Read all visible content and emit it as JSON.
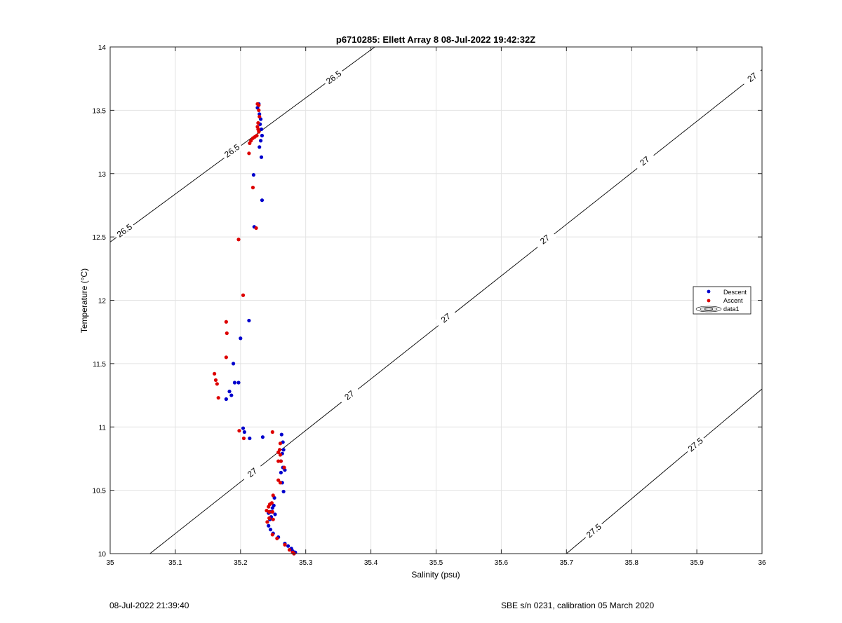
{
  "chart_data": {
    "type": "scatter",
    "title": "p6710285: Ellett Array 8 08-Jul-2022 19:42:32Z",
    "xlabel": "Salinity (psu)",
    "ylabel": "Temperature (°C)",
    "xlim": [
      35,
      36
    ],
    "ylim": [
      10,
      14
    ],
    "xticks": [
      35,
      35.1,
      35.2,
      35.3,
      35.4,
      35.5,
      35.6,
      35.7,
      35.8,
      35.9,
      36
    ],
    "xtick_labels": [
      "35",
      "35.1",
      "35.2",
      "35.3",
      "35.4",
      "35.5",
      "35.6",
      "35.7",
      "35.8",
      "35.9",
      "36"
    ],
    "yticks": [
      10,
      10.5,
      11,
      11.5,
      12,
      12.5,
      13,
      13.5,
      14
    ],
    "ytick_labels": [
      "10",
      "10.5",
      "11",
      "11.5",
      "12",
      "12.5",
      "13",
      "13.5",
      "14"
    ],
    "grid": true,
    "legend_position": "right",
    "legend": [
      "Descent",
      "Ascent",
      "data1"
    ],
    "series": [
      {
        "name": "Descent",
        "color": "#0000cc",
        "points": [
          [
            35.228,
            13.55
          ],
          [
            35.226,
            13.52
          ],
          [
            35.229,
            13.47
          ],
          [
            35.231,
            13.43
          ],
          [
            35.23,
            13.39
          ],
          [
            35.232,
            13.35
          ],
          [
            35.233,
            13.3
          ],
          [
            35.231,
            13.26
          ],
          [
            35.229,
            13.21
          ],
          [
            35.232,
            13.13
          ],
          [
            35.22,
            12.99
          ],
          [
            35.233,
            12.79
          ],
          [
            35.221,
            12.58
          ],
          [
            35.213,
            11.84
          ],
          [
            35.2,
            11.7
          ],
          [
            35.189,
            11.5
          ],
          [
            35.191,
            11.35
          ],
          [
            35.197,
            11.35
          ],
          [
            35.183,
            11.28
          ],
          [
            35.186,
            11.25
          ],
          [
            35.178,
            11.22
          ],
          [
            35.204,
            10.99
          ],
          [
            35.206,
            10.96
          ],
          [
            35.214,
            10.91
          ],
          [
            35.234,
            10.92
          ],
          [
            35.263,
            10.94
          ],
          [
            35.265,
            10.88
          ],
          [
            35.266,
            10.82
          ],
          [
            35.264,
            10.79
          ],
          [
            35.262,
            10.73
          ],
          [
            35.265,
            10.68
          ],
          [
            35.268,
            10.66
          ],
          [
            35.262,
            10.64
          ],
          [
            35.264,
            10.56
          ],
          [
            35.266,
            10.49
          ],
          [
            35.252,
            10.44
          ],
          [
            35.251,
            10.38
          ],
          [
            35.249,
            10.36
          ],
          [
            35.246,
            10.33
          ],
          [
            35.243,
            10.32
          ],
          [
            35.253,
            10.31
          ],
          [
            35.247,
            10.29
          ],
          [
            35.245,
            10.27
          ],
          [
            35.243,
            10.22
          ],
          [
            35.246,
            10.19
          ],
          [
            35.25,
            10.16
          ],
          [
            35.258,
            10.13
          ],
          [
            35.268,
            10.08
          ],
          [
            35.273,
            10.06
          ],
          [
            35.278,
            10.04
          ],
          [
            35.28,
            10.02
          ],
          [
            35.284,
            10.01
          ],
          [
            35.282,
            10.0
          ]
        ]
      },
      {
        "name": "Ascent",
        "color": "#dd0000",
        "points": [
          [
            35.226,
            13.55
          ],
          [
            35.228,
            13.54
          ],
          [
            35.228,
            13.5
          ],
          [
            35.229,
            13.45
          ],
          [
            35.227,
            13.4
          ],
          [
            35.226,
            13.37
          ],
          [
            35.227,
            13.35
          ],
          [
            35.228,
            13.33
          ],
          [
            35.225,
            13.3
          ],
          [
            35.222,
            13.29
          ],
          [
            35.219,
            13.28
          ],
          [
            35.216,
            13.26
          ],
          [
            35.214,
            13.24
          ],
          [
            35.213,
            13.16
          ],
          [
            35.219,
            12.89
          ],
          [
            35.224,
            12.57
          ],
          [
            35.197,
            12.48
          ],
          [
            35.204,
            12.04
          ],
          [
            35.178,
            11.83
          ],
          [
            35.179,
            11.74
          ],
          [
            35.178,
            11.55
          ],
          [
            35.16,
            11.42
          ],
          [
            35.162,
            11.37
          ],
          [
            35.164,
            11.34
          ],
          [
            35.166,
            11.23
          ],
          [
            35.198,
            10.97
          ],
          [
            35.205,
            10.91
          ],
          [
            35.249,
            10.96
          ],
          [
            35.261,
            10.87
          ],
          [
            35.26,
            10.82
          ],
          [
            35.258,
            10.8
          ],
          [
            35.261,
            10.78
          ],
          [
            35.262,
            10.73
          ],
          [
            35.258,
            10.73
          ],
          [
            35.267,
            10.68
          ],
          [
            35.258,
            10.58
          ],
          [
            35.261,
            10.56
          ],
          [
            35.25,
            10.46
          ],
          [
            35.245,
            10.39
          ],
          [
            35.248,
            10.4
          ],
          [
            35.243,
            10.37
          ],
          [
            35.24,
            10.34
          ],
          [
            35.244,
            10.33
          ],
          [
            35.249,
            10.33
          ],
          [
            35.244,
            10.28
          ],
          [
            35.25,
            10.27
          ],
          [
            35.241,
            10.25
          ],
          [
            35.249,
            10.15
          ],
          [
            35.256,
            10.12
          ],
          [
            35.268,
            10.07
          ],
          [
            35.275,
            10.03
          ],
          [
            35.28,
            10.01
          ],
          [
            35.282,
            10.0
          ]
        ]
      }
    ],
    "contours": [
      {
        "level": 26.5,
        "label": "26.5",
        "from": [
          35,
          12.46
        ],
        "to": [
          35.406,
          14
        ],
        "label_positions": [
          [
            35.022,
            12.55
          ],
          [
            35.187,
            13.18
          ],
          [
            35.343,
            13.76
          ]
        ]
      },
      {
        "level": 27,
        "label": "27",
        "from": [
          35.061,
          10
        ],
        "to": [
          36,
          13.82
        ],
        "label_positions": [
          [
            35.218,
            10.64
          ],
          [
            35.367,
            11.25
          ],
          [
            35.515,
            11.86
          ],
          [
            35.667,
            12.48
          ],
          [
            35.82,
            13.1
          ],
          [
            35.985,
            13.76
          ]
        ]
      },
      {
        "level": 27.5,
        "label": "27.5",
        "from": [
          35.7,
          10
        ],
        "to": [
          36,
          11.3
        ],
        "label_positions": [
          [
            35.742,
            10.18
          ],
          [
            35.898,
            10.86
          ]
        ]
      }
    ]
  },
  "footer": {
    "left": "08-Jul-2022 21:39:40",
    "right": "SBE s/n 0231, calibration 05 March 2020"
  }
}
